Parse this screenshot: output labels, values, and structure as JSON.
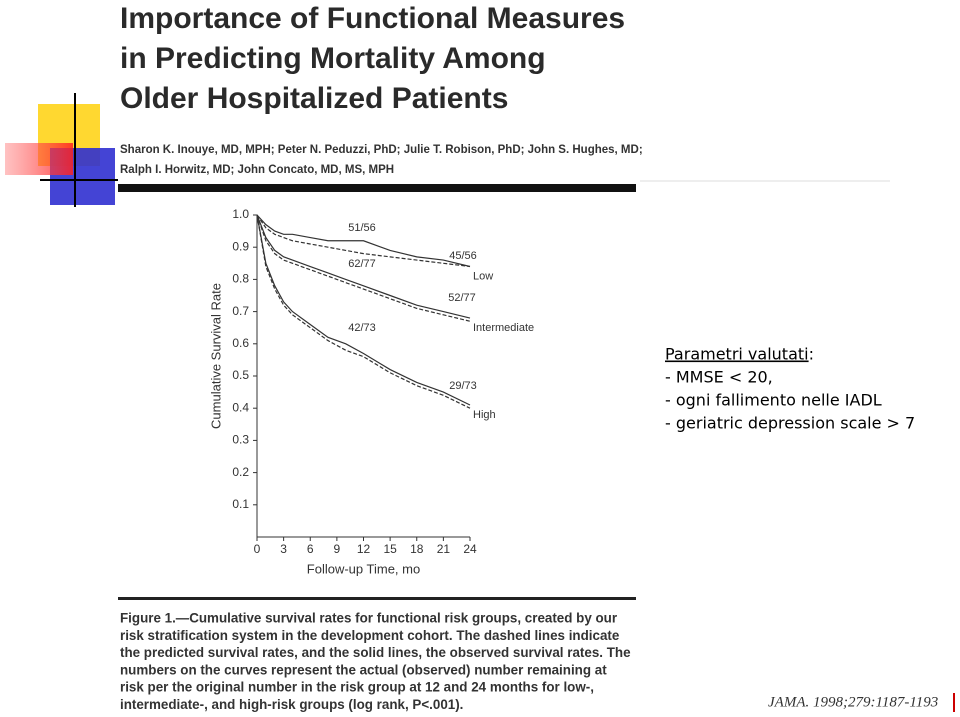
{
  "article": {
    "title_lines": [
      "Importance of Functional Measures",
      "in Predicting Mortality Among",
      "Older Hospitalized Patients"
    ],
    "author_lines": [
      "Sharon K. Inouye, MD, MPH; Peter N. Peduzzi, PhD; Julie T. Robison, PhD; John S. Hughes, MD;",
      "Ralph I. Horwitz, MD; John Concato, MD, MS, MPH"
    ],
    "caption_lines": [
      "Figure 1.—Cumulative survival rates for functional risk groups, created by our",
      "risk stratification system in the development cohort. The dashed lines indicate",
      "the predicted survival rates, and the solid lines, the observed survival rates. The",
      "numbers on the curves represent the actual (observed) number remaining at",
      "risk per the original number in the risk group at 12 and 24 months for low-,",
      "intermediate-, and high-risk groups (log rank, P<.001)."
    ]
  },
  "chart_data": {
    "type": "line",
    "x_label": "Follow-up Time, mo",
    "y_label": "Cumulative Survival Rate",
    "x": [
      0,
      1,
      2,
      3,
      4,
      6,
      8,
      10,
      12,
      15,
      18,
      21,
      24
    ],
    "xlim": [
      0,
      24
    ],
    "xticks": [
      0,
      3,
      6,
      9,
      12,
      15,
      18,
      21,
      24
    ],
    "ylim": [
      0,
      1
    ],
    "yticks": [
      0.1,
      0.2,
      0.3,
      0.4,
      0.5,
      0.6,
      0.7,
      0.8,
      0.9,
      {
        "value": 1,
        "label": "1.0"
      }
    ],
    "series": [
      {
        "name": "Low",
        "color": "#333333",
        "values": [
          1.0,
          0.97,
          0.95,
          0.94,
          0.94,
          0.93,
          0.92,
          0.92,
          0.92,
          0.89,
          0.87,
          0.86,
          0.84
        ]
      },
      {
        "color": "#333333",
        "dashed": true,
        "values": [
          1.0,
          0.96,
          0.94,
          0.93,
          0.92,
          0.91,
          0.9,
          0.89,
          0.88,
          0.87,
          0.86,
          0.85,
          0.84
        ]
      },
      {
        "name": "Intermediate",
        "color": "#333333",
        "values": [
          1.0,
          0.93,
          0.89,
          0.87,
          0.86,
          0.84,
          0.82,
          0.8,
          0.78,
          0.75,
          0.72,
          0.7,
          0.68
        ]
      },
      {
        "color": "#333333",
        "dashed": true,
        "values": [
          1.0,
          0.92,
          0.88,
          0.86,
          0.85,
          0.83,
          0.81,
          0.79,
          0.77,
          0.74,
          0.71,
          0.69,
          0.67
        ]
      },
      {
        "name": "High",
        "color": "#333333",
        "values": [
          1.0,
          0.85,
          0.78,
          0.73,
          0.7,
          0.66,
          0.62,
          0.6,
          0.57,
          0.52,
          0.48,
          0.45,
          0.41
        ]
      },
      {
        "color": "#333333",
        "dashed": true,
        "values": [
          1.0,
          0.84,
          0.77,
          0.72,
          0.69,
          0.65,
          0.61,
          0.58,
          0.56,
          0.51,
          0.47,
          0.44,
          0.4
        ]
      }
    ],
    "annotations": [
      "51/56",
      "45/56",
      "62/77",
      "52/77",
      "42/73",
      "29/73"
    ]
  },
  "notes": {
    "heading": "Parametri valutati",
    "heading_suffix": ":",
    "items": [
      "- MMSE < 20,",
      "- ogni fallimento nelle IADL",
      "- geriatric depression scale > 7"
    ]
  },
  "citation": "JAMA. 1998;279:1187-1193"
}
